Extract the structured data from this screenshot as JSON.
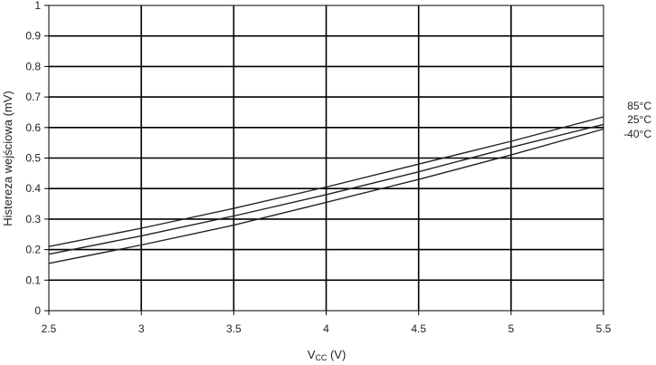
{
  "chart_data": {
    "type": "line",
    "xlabel_main": "V",
    "xlabel_sub": "CC",
    "xlabel_unit": " (V)",
    "ylabel": "Histereza wejściowa (mV)",
    "xlim": [
      2.5,
      5.5
    ],
    "ylim": [
      0,
      1
    ],
    "x_ticks": [
      "2.5",
      "3",
      "3.5",
      "4",
      "4.5",
      "5",
      "5.5"
    ],
    "y_ticks": [
      "0",
      "0.1",
      "0.2",
      "0.3",
      "0.4",
      "0.5",
      "0.6",
      "0.7",
      "0.8",
      "0.9",
      "1"
    ],
    "grid": true,
    "legend_position": "right",
    "x": [
      2.5,
      3.0,
      3.5,
      4.0,
      4.5,
      5.0,
      5.5
    ],
    "series": [
      {
        "name": "85°C",
        "values": [
          0.21,
          0.27,
          0.335,
          0.405,
          0.48,
          0.555,
          0.635
        ]
      },
      {
        "name": "25°C",
        "values": [
          0.185,
          0.245,
          0.31,
          0.38,
          0.455,
          0.535,
          0.61
        ]
      },
      {
        "name": "-40°C",
        "values": [
          0.155,
          0.215,
          0.28,
          0.355,
          0.43,
          0.51,
          0.595
        ]
      }
    ]
  }
}
